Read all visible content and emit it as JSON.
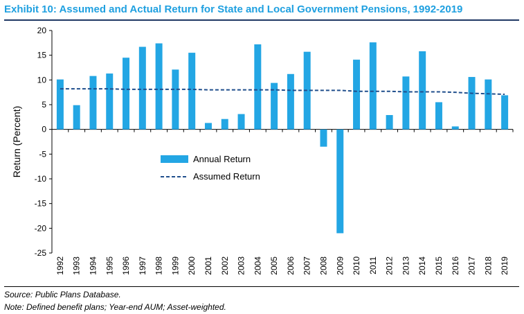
{
  "header": {
    "title": "Exhibit 10: Assumed and Actual Return for State and Local Government Pensions, 1992-2019"
  },
  "footer": {
    "source": "Source: Public Plans Database.",
    "note": "Note: Defined benefit plans; Year-end AUM; Asset-weighted."
  },
  "colors": {
    "title": "#1fa0e0",
    "bar": "#23a6e4",
    "assumed_line": "#1f4e8c",
    "rule": "#1f3864"
  },
  "chart_data": {
    "type": "bar",
    "categories": [
      "1992",
      "1993",
      "1994",
      "1995",
      "1996",
      "1997",
      "1998",
      "1999",
      "2000",
      "2001",
      "2002",
      "2003",
      "2004",
      "2005",
      "2006",
      "2007",
      "2008",
      "2009",
      "2010",
      "2011",
      "2012",
      "2013",
      "2014",
      "2015",
      "2016",
      "2017",
      "2018",
      "2019"
    ],
    "series": [
      {
        "name": "Annual Return",
        "kind": "bar",
        "values": [
          10.1,
          4.9,
          10.8,
          11.3,
          14.5,
          16.7,
          17.4,
          12.1,
          15.5,
          1.3,
          2.1,
          3.1,
          17.2,
          9.4,
          11.2,
          15.7,
          -3.5,
          -21.0,
          14.1,
          17.6,
          2.9,
          10.7,
          15.8,
          5.5,
          0.6,
          10.6,
          10.1,
          6.9
        ]
      },
      {
        "name": "Assumed Return",
        "kind": "line",
        "style": "dashed",
        "values": [
          8.2,
          8.2,
          8.2,
          8.2,
          8.1,
          8.1,
          8.1,
          8.1,
          8.1,
          8.0,
          8.0,
          8.0,
          8.0,
          8.0,
          7.9,
          7.9,
          7.9,
          7.9,
          7.7,
          7.7,
          7.7,
          7.6,
          7.6,
          7.6,
          7.5,
          7.3,
          7.2,
          7.1
        ]
      }
    ],
    "ylabel": "Return (Percent)",
    "xlabel": "",
    "ylim": [
      -25,
      20
    ],
    "yticks": [
      -25,
      -20,
      -15,
      -10,
      -5,
      0,
      5,
      10,
      15,
      20
    ],
    "grid": false,
    "legend": {
      "placement": "center-left",
      "entries": [
        "Annual Return",
        "Assumed Return"
      ]
    }
  }
}
